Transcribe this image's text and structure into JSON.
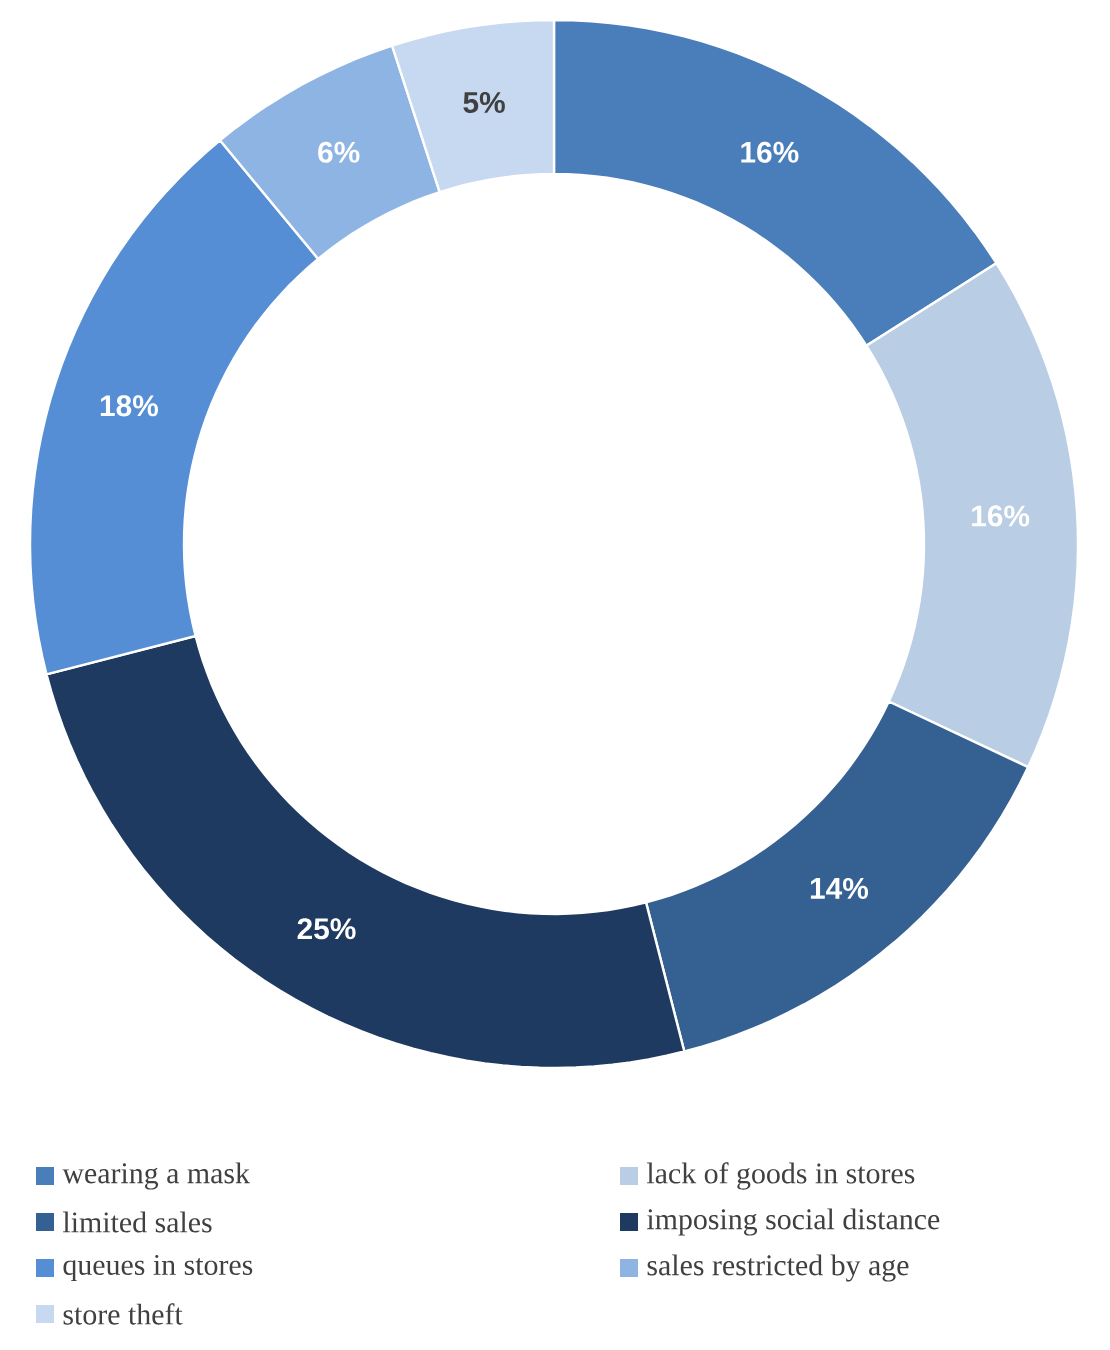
{
  "chart_data": {
    "type": "donut",
    "categories": [
      "wearing a mask",
      "lack of goods in stores",
      "limited sales",
      "imposing social distance",
      "queues in stores",
      "sales restricted by age",
      "store theft"
    ],
    "values": [
      16,
      16,
      14,
      25,
      18,
      6,
      5
    ],
    "value_labels": [
      "16%",
      "16%",
      "14%",
      "25%",
      "18%",
      "6%",
      "5%"
    ],
    "colors": [
      "#4a7ebb",
      "#b9cde5",
      "#356092",
      "#1f3a60",
      "#558ed5",
      "#8eb4e3",
      "#c6d9f1"
    ],
    "legend": "bottom"
  }
}
